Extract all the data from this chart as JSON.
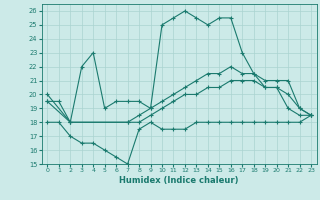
{
  "xlabel": "Humidex (Indice chaleur)",
  "xlim": [
    -0.5,
    23.5
  ],
  "ylim": [
    15,
    26.5
  ],
  "yticks": [
    15,
    16,
    17,
    18,
    19,
    20,
    21,
    22,
    23,
    24,
    25,
    26
  ],
  "xticks": [
    0,
    1,
    2,
    3,
    4,
    5,
    6,
    7,
    8,
    9,
    10,
    11,
    12,
    13,
    14,
    15,
    16,
    17,
    18,
    19,
    20,
    21,
    22,
    23
  ],
  "background_color": "#cceae8",
  "grid_color": "#b0d8d5",
  "line_color": "#1a7a6e",
  "lines": [
    {
      "x": [
        0,
        1,
        2,
        3,
        4,
        5,
        6,
        7,
        8,
        9,
        10,
        11,
        12,
        13,
        14,
        15,
        16,
        17,
        18,
        19,
        20,
        21,
        22,
        23
      ],
      "y": [
        19.5,
        19.5,
        18.0,
        22.0,
        23.0,
        19.0,
        19.5,
        19.5,
        19.5,
        19.0,
        25.0,
        25.5,
        26.0,
        25.5,
        25.0,
        25.5,
        25.5,
        23.0,
        21.5,
        20.5,
        20.5,
        19.0,
        18.5,
        18.5
      ]
    },
    {
      "x": [
        0,
        2,
        7,
        8,
        9,
        10,
        11,
        12,
        13,
        14,
        15,
        16,
        17,
        18,
        19,
        20,
        21,
        22,
        23
      ],
      "y": [
        20.0,
        18.0,
        18.0,
        18.5,
        19.0,
        19.5,
        20.0,
        20.5,
        21.0,
        21.5,
        21.5,
        22.0,
        21.5,
        21.5,
        21.0,
        21.0,
        21.0,
        19.0,
        18.5
      ]
    },
    {
      "x": [
        0,
        2,
        7,
        8,
        9,
        10,
        11,
        12,
        13,
        14,
        15,
        16,
        17,
        18,
        19,
        20,
        21,
        22,
        23
      ],
      "y": [
        19.5,
        18.0,
        18.0,
        18.0,
        18.5,
        19.0,
        19.5,
        20.0,
        20.0,
        20.5,
        20.5,
        21.0,
        21.0,
        21.0,
        20.5,
        20.5,
        20.0,
        19.0,
        18.5
      ]
    },
    {
      "x": [
        0,
        1,
        2,
        3,
        4,
        5,
        6,
        7,
        8,
        9,
        10,
        11,
        12,
        13,
        14,
        15,
        16,
        17,
        18,
        19,
        20,
        21,
        22,
        23
      ],
      "y": [
        18.0,
        18.0,
        17.0,
        16.5,
        16.5,
        16.0,
        15.5,
        15.0,
        17.5,
        18.0,
        17.5,
        17.5,
        17.5,
        18.0,
        18.0,
        18.0,
        18.0,
        18.0,
        18.0,
        18.0,
        18.0,
        18.0,
        18.0,
        18.5
      ]
    }
  ]
}
